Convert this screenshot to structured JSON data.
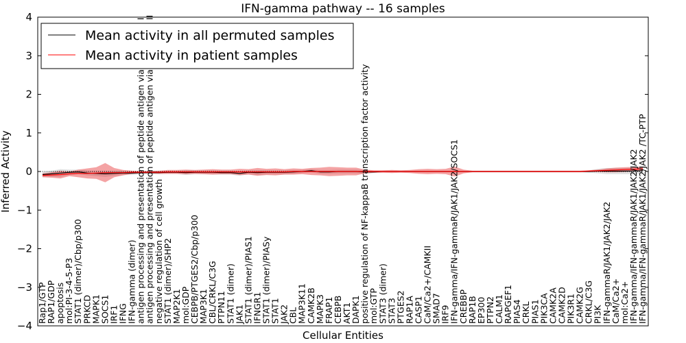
{
  "chart_data": {
    "type": "line",
    "title": "IFN-gamma pathway -- 16 samples",
    "xlabel": "Cellular Entities",
    "ylabel": "Inferred Activity",
    "ylim": [
      -4,
      4
    ],
    "yticks": [
      "−4",
      "−3",
      "−2",
      "−1",
      "0",
      "1",
      "2",
      "3",
      "4"
    ],
    "grid": false,
    "legend_position": "top-left",
    "legend": [
      {
        "label": "Mean activity in all permuted samples",
        "color": "#000000"
      },
      {
        "label": "Mean activity in patient samples",
        "color": "#ff0000"
      }
    ],
    "categories": [
      "Rap1/GTP",
      "RAP1/GDP",
      "apoptosis",
      "mol:PI-3-4-5-P3",
      "STAT1 (dimer)/Cbp/p300",
      "PRKCD",
      "MAPK1",
      "SOCS1",
      "IRF1",
      "IFNG",
      "IFN-gamma (dimer)",
      "antigen processing and presentation of peptide antigen via MHC class I",
      "antigen processing and presentation of peptide antigen via MHC class II",
      "negative regulation of cell growth",
      "STAT1 (dimer)/SHP2",
      "MAP2K1",
      "mol:GDP",
      "CEBPB/PTGES2/Cbp/p300",
      "MAP3K1",
      "CBL/CRKL/C3G",
      "PTPN11",
      "STAT1 (dimer)",
      "JAK1",
      "STAT1 (dimer)/PIAS1",
      "IFNGR1",
      "STAT1 (dimer)/PIASy",
      "STAT1",
      "JAK2",
      "CBL",
      "MAP3K11",
      "CAMK2B",
      "MAPK3",
      "FRAP1",
      "CEBPB",
      "AKT1",
      "DAPK1",
      "positive regulation of NF-kappaB transcription factor activity",
      "mol:GTP",
      "STAT3 (dimer)",
      "STAT3",
      "PTGES2",
      "RAP1A",
      "CASP1",
      "CaM/Ca2+/CAMKII",
      "SMAD7",
      "IRF9",
      "IFN-gamma/IFN-gammaR/JAK1/JAK2/SOCS1",
      "CREBBP",
      "RAP1B",
      "EP300",
      "PTPN2",
      "CALM1",
      "RAPGEF1",
      "PIAS4",
      "CRKL",
      "PIAS1",
      "PIK3CA",
      "CAMK2A",
      "CAMK2D",
      "PIK3R1",
      "CAMK2G",
      "CRKL/C3G",
      "PI3K",
      "IFN-gammaR/JAK1/JAK2/JAK2",
      "CaM/Ca2+",
      "mol:Ca2+",
      "IFN-gamma/IFN-gammaR/JAK1/JAK2/JAK2",
      "IFN-gamma/IFN-gammaR/JAK1/JAK2/JAK2 /TC-PTP"
    ],
    "series": [
      {
        "name": "Mean activity in all permuted samples",
        "color": "#000000",
        "values": [
          -0.08,
          -0.06,
          -0.04,
          -0.02,
          -0.01,
          -0.04,
          -0.05,
          -0.06,
          -0.05,
          -0.04,
          -0.04,
          -0.03,
          -0.03,
          -0.03,
          -0.02,
          -0.02,
          -0.03,
          -0.02,
          -0.02,
          -0.02,
          -0.03,
          -0.03,
          -0.05,
          -0.02,
          -0.03,
          -0.02,
          -0.02,
          -0.02,
          -0.01,
          0.0,
          0.02,
          -0.01,
          -0.01,
          0.0,
          0.0,
          0.0,
          -0.01,
          -0.01,
          0.0,
          0.0,
          0.0,
          0.0,
          0.0,
          0.0,
          0.0,
          0.0,
          0.0,
          0.0,
          0.0,
          0.0,
          0.0,
          0.0,
          0.0,
          0.0,
          0.0,
          0.0,
          0.0,
          0.0,
          0.0,
          0.0,
          0.0,
          0.0,
          0.01,
          0.01,
          0.01,
          0.01,
          0.01,
          0.02
        ],
        "band": [
          0.06,
          0.08,
          0.1,
          0.07,
          0.06,
          0.06,
          0.07,
          0.08,
          0.06,
          0.05,
          0.05,
          0.04,
          0.04,
          0.04,
          0.04,
          0.04,
          0.06,
          0.05,
          0.05,
          0.05,
          0.05,
          0.05,
          0.06,
          0.05,
          0.06,
          0.05,
          0.05,
          0.05,
          0.05,
          0.04,
          0.04,
          0.05,
          0.05,
          0.05,
          0.05,
          0.05,
          0.05,
          0.03,
          0.02,
          0.02,
          0.02,
          0.02,
          0.02,
          0.02,
          0.02,
          0.02,
          0.02,
          0.02,
          0.02,
          0.02,
          0.02,
          0.02,
          0.02,
          0.02,
          0.02,
          0.02,
          0.02,
          0.02,
          0.02,
          0.02,
          0.02,
          0.03,
          0.06,
          0.08,
          0.08,
          0.08,
          0.08,
          0.08
        ]
      },
      {
        "name": "Mean activity in patient samples",
        "color": "#ff0000",
        "values": [
          -0.1,
          -0.09,
          -0.08,
          -0.06,
          -0.05,
          -0.05,
          -0.04,
          -0.03,
          -0.03,
          -0.03,
          -0.02,
          -0.02,
          -0.02,
          -0.02,
          -0.01,
          -0.01,
          -0.01,
          -0.01,
          -0.01,
          -0.01,
          -0.01,
          -0.01,
          -0.01,
          -0.01,
          -0.01,
          -0.01,
          -0.01,
          -0.01,
          0.0,
          0.0,
          0.0,
          0.0,
          0.0,
          0.0,
          0.0,
          0.0,
          0.0,
          0.0,
          0.0,
          0.0,
          0.0,
          0.0,
          0.0,
          0.0,
          0.0,
          0.0,
          0.0,
          0.0,
          0.0,
          0.0,
          0.0,
          0.0,
          0.0,
          0.0,
          0.0,
          0.0,
          0.0,
          0.0,
          0.0,
          0.0,
          0.0,
          0.01,
          0.02,
          0.03,
          0.04,
          0.05,
          0.06,
          0.07
        ],
        "band": [
          0.05,
          0.07,
          0.1,
          0.06,
          0.1,
          0.13,
          0.15,
          0.25,
          0.12,
          0.07,
          0.04,
          0.03,
          0.03,
          0.04,
          0.05,
          0.05,
          0.06,
          0.05,
          0.06,
          0.07,
          0.06,
          0.06,
          0.08,
          0.07,
          0.1,
          0.08,
          0.09,
          0.07,
          0.08,
          0.07,
          0.09,
          0.1,
          0.12,
          0.11,
          0.1,
          0.1,
          0.05,
          0.03,
          0.03,
          0.04,
          0.03,
          0.04,
          0.06,
          0.07,
          0.06,
          0.07,
          0.13,
          0.05,
          0.02,
          0.02,
          0.02,
          0.02,
          0.02,
          0.02,
          0.02,
          0.02,
          0.02,
          0.02,
          0.02,
          0.02,
          0.02,
          0.02,
          0.03,
          0.05,
          0.06,
          0.06,
          0.06,
          0.06
        ]
      }
    ]
  }
}
